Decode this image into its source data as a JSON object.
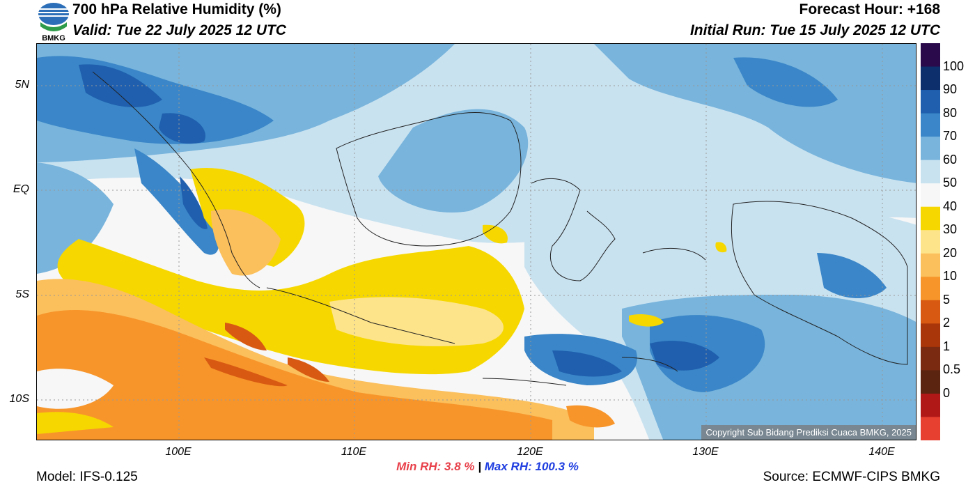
{
  "header": {
    "title": "700 hPa Relative Humidity (%)",
    "valid": "Valid: Tue 22 July 2025 12 UTC",
    "forecast_hour": "Forecast Hour: +168",
    "initial_run": "Initial Run: Tue 15 July 2025 12 UTC"
  },
  "logo": {
    "text": "BMKG"
  },
  "axes": {
    "lat_labels": [
      "5N",
      "EQ",
      "5S",
      "10S"
    ],
    "lon_labels": [
      "100E",
      "110E",
      "120E",
      "130E",
      "140E"
    ]
  },
  "colorbar": {
    "labels": [
      "100",
      "90",
      "80",
      "70",
      "60",
      "50",
      "40",
      "30",
      "20",
      "10",
      "5",
      "2",
      "1",
      "0.5",
      "0"
    ],
    "colors": [
      "#2a0a4a",
      "#0d2f6b",
      "#1f5fae",
      "#3a86c8",
      "#78b4dc",
      "#c9e2f0",
      "#f7f7f7",
      "#f6d800",
      "#fde48a",
      "#fbbf5c",
      "#f7952a",
      "#d85a12",
      "#a8360a",
      "#7a2a10",
      "#5a2410",
      "#b01818",
      "#e84030"
    ]
  },
  "stats": {
    "min_label": "Min RH:",
    "min_value": "3.8 %",
    "separator": "|",
    "max_label": "Max RH:",
    "max_value": "100.3 %"
  },
  "footer": {
    "model": "Model: IFS-0.125",
    "source": "Source: ECMWF-CIPS BMKG",
    "copyright": "Copyright Sub Bidang Prediksi Cuaca BMKG, 2025"
  }
}
